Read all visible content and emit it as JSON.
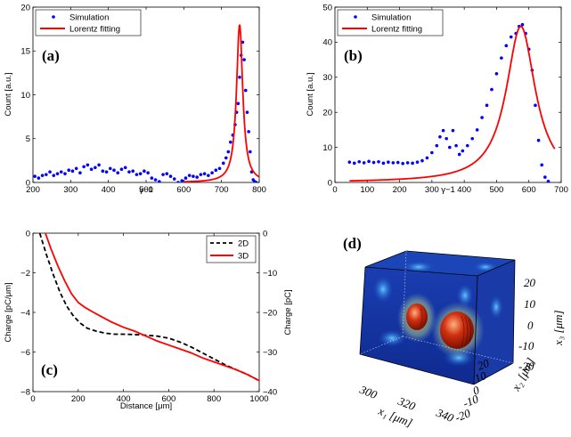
{
  "chart_data": [
    {
      "id": "a",
      "type": "scatter+line",
      "panel_label": "(a)",
      "xlabel": "γ−1",
      "ylabel": "Count [a.u.]",
      "xlim": [
        200,
        800
      ],
      "ylim": [
        0,
        20
      ],
      "xticks": [
        200,
        300,
        400,
        500,
        600,
        700,
        800
      ],
      "yticks": [
        0,
        5,
        10,
        15,
        20
      ],
      "legend_position": "top-left",
      "series": [
        {
          "name": "Simulation",
          "style": "dots",
          "color": "#0000ff",
          "x": [
            205,
            215,
            225,
            235,
            245,
            255,
            265,
            275,
            285,
            295,
            305,
            315,
            325,
            335,
            345,
            355,
            365,
            375,
            385,
            395,
            405,
            415,
            425,
            435,
            445,
            455,
            465,
            475,
            485,
            495,
            505,
            515,
            525,
            535,
            545,
            555,
            565,
            575,
            585,
            595,
            605,
            615,
            625,
            635,
            645,
            655,
            665,
            675,
            685,
            695,
            705,
            712,
            718,
            724,
            730,
            736,
            740,
            744,
            748,
            752,
            756,
            760,
            764,
            768,
            772,
            776,
            780,
            784,
            788,
            792
          ],
          "y": [
            0.7,
            0.5,
            0.8,
            0.9,
            1.2,
            0.8,
            1.0,
            1.2,
            1.0,
            1.4,
            1.3,
            1.6,
            1.1,
            1.8,
            2.0,
            1.5,
            1.7,
            2.0,
            1.3,
            1.2,
            1.6,
            1.4,
            1.1,
            1.5,
            1.7,
            1.2,
            1.3,
            0.9,
            1.0,
            1.3,
            1.1,
            0.5,
            0.3,
            0.1,
            0.9,
            1.0,
            0.7,
            0.4,
            0.0,
            0.2,
            0.5,
            0.8,
            0.7,
            0.6,
            0.9,
            1.0,
            0.8,
            1.1,
            1.4,
            1.6,
            2.2,
            2.8,
            3.5,
            4.6,
            5.4,
            6.6,
            8.0,
            9.0,
            12.0,
            14.5,
            16.0,
            14.0,
            10.5,
            8.0,
            5.8,
            3.5,
            1.2,
            0.3,
            0.1,
            0.0
          ]
        },
        {
          "name": "Lorentz fitting",
          "style": "line",
          "color": "#ff0000",
          "lorentz": {
            "amplitude": 18,
            "center": 748,
            "hwhm": 10,
            "xstart": 600,
            "xend": 800
          }
        }
      ]
    },
    {
      "id": "b",
      "type": "scatter+line",
      "panel_label": "(b)",
      "xlabel": "γ−1",
      "ylabel": "Count [a.u.]",
      "xlim": [
        0,
        700
      ],
      "ylim": [
        0,
        50
      ],
      "xticks": [
        0,
        100,
        200,
        300,
        400,
        500,
        600,
        700
      ],
      "yticks": [
        0,
        10,
        20,
        30,
        40,
        50
      ],
      "legend_position": "top-left",
      "series": [
        {
          "name": "Simulation",
          "style": "dots",
          "color": "#0000ff",
          "x": [
            45,
            60,
            75,
            90,
            105,
            120,
            135,
            150,
            165,
            180,
            195,
            210,
            225,
            240,
            255,
            270,
            285,
            300,
            315,
            325,
            335,
            345,
            355,
            365,
            375,
            385,
            395,
            410,
            425,
            440,
            455,
            470,
            485,
            500,
            515,
            530,
            545,
            560,
            570,
            580,
            590,
            600,
            610,
            620,
            630,
            640,
            650,
            660
          ],
          "y": [
            5.8,
            5.5,
            5.9,
            5.6,
            6.0,
            5.7,
            5.9,
            5.5,
            5.8,
            5.6,
            5.7,
            5.4,
            5.6,
            5.5,
            5.8,
            6.2,
            7.0,
            8.5,
            10.5,
            13.0,
            14.8,
            12.5,
            10.0,
            14.8,
            10.5,
            8.0,
            9.0,
            10.5,
            12.5,
            15.0,
            18.5,
            22.0,
            26.5,
            31.0,
            35.5,
            39.0,
            41.5,
            42.5,
            44.5,
            45.0,
            42.5,
            38.0,
            32.0,
            22.0,
            12.0,
            5.0,
            1.5,
            0.3
          ]
        },
        {
          "name": "Lorentz fitting",
          "style": "line",
          "color": "#ff0000",
          "lorentz": {
            "amplitude": 44.5,
            "center": 575,
            "hwhm": 55,
            "xstart": 45,
            "xend": 680
          }
        }
      ]
    },
    {
      "id": "c",
      "type": "line",
      "panel_label": "(c)",
      "xlabel": "Distance [μm]",
      "ylabel": "Charge [pC/μm]",
      "ylabel_right": "Charge [pC]",
      "xlim": [
        0,
        1000
      ],
      "ylim": [
        -8,
        0
      ],
      "ylim_right": [
        -40,
        0
      ],
      "xticks": [
        0,
        200,
        400,
        600,
        800,
        1000
      ],
      "yticks": [
        -8,
        -6,
        -4,
        -2,
        0
      ],
      "yticks_right": [
        -40,
        -30,
        -20,
        -10,
        0
      ],
      "legend_position": "top-right",
      "series": [
        {
          "name": "2D",
          "style": "dashed",
          "color": "#000000",
          "x": [
            30,
            60,
            90,
            120,
            150,
            180,
            210,
            240,
            280,
            320,
            360,
            400,
            450,
            500,
            550,
            600,
            650,
            700,
            750,
            800,
            850,
            900,
            950,
            1000
          ],
          "y": [
            0,
            -1.1,
            -2.1,
            -3.0,
            -3.7,
            -4.2,
            -4.55,
            -4.8,
            -4.95,
            -5.05,
            -5.1,
            -5.1,
            -5.12,
            -5.15,
            -5.2,
            -5.3,
            -5.5,
            -5.75,
            -6.05,
            -6.35,
            -6.65,
            -6.9,
            -7.15,
            -7.45
          ]
        },
        {
          "name": "3D",
          "style": "solid",
          "color": "#ff0000",
          "x": [
            55,
            80,
            110,
            140,
            170,
            200,
            230,
            260,
            300,
            350,
            400,
            450,
            500,
            550,
            600,
            650,
            700,
            750,
            800,
            850,
            900,
            950,
            1000
          ],
          "y": [
            0,
            -0.8,
            -1.65,
            -2.4,
            -3.05,
            -3.5,
            -3.75,
            -3.95,
            -4.2,
            -4.5,
            -4.75,
            -4.95,
            -5.2,
            -5.45,
            -5.65,
            -5.85,
            -6.05,
            -6.3,
            -6.5,
            -6.7,
            -6.9,
            -7.15,
            -7.45
          ]
        }
      ]
    }
  ],
  "panel_d": {
    "panel_label": "(d)",
    "x1_label": "x₁ [μm]",
    "x2_label": "x₂ [μm]",
    "x3_label": "x₃ [μm]",
    "x1_ticks": [
      300,
      320,
      340
    ],
    "x2_ticks": [
      20,
      10,
      0,
      -10,
      -20
    ],
    "x3_ticks": [
      20,
      10,
      0,
      -10,
      -20
    ]
  }
}
